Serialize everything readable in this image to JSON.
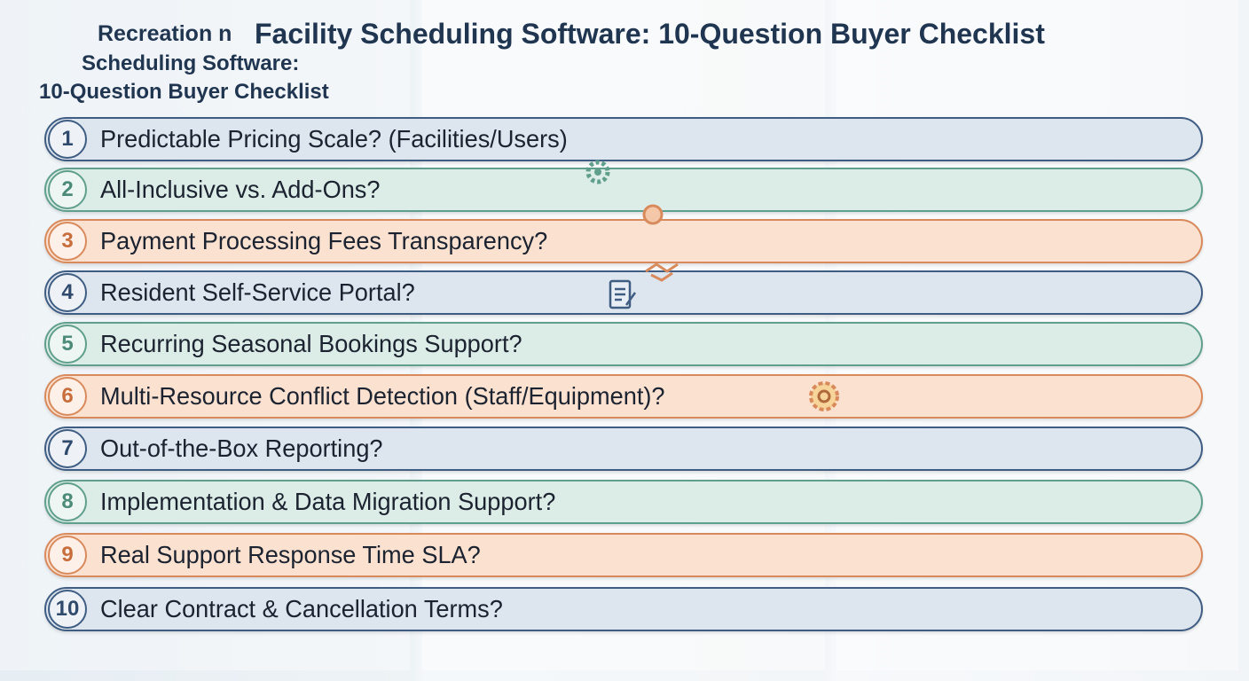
{
  "header": {
    "prefix": "Recreation n",
    "title": "Facility Scheduling Software: 10-Question Buyer Checklist",
    "subtitle_line1": "Scheduling Software:",
    "subtitle_line2": "10-Question Buyer Checklist"
  },
  "items": [
    {
      "number": 1,
      "text": "Predictable Pricing Scale? (Facilities/Users)"
    },
    {
      "number": 2,
      "text": "All-Inclusive vs. Add-Ons?"
    },
    {
      "number": 3,
      "text": "Payment Processing Fees Transparency?"
    },
    {
      "number": 4,
      "text": "Resident Self-Service Portal?"
    },
    {
      "number": 5,
      "text": "Recurring Seasonal Bookings Support?"
    },
    {
      "number": 6,
      "text": "Multi-Resource Conflict Detection (Staff/Equipment)?"
    },
    {
      "number": 7,
      "text": "Out-of-the-Box Reporting?"
    },
    {
      "number": 8,
      "text": "Implementation & Data Migration Support?"
    },
    {
      "number": 9,
      "text": "Real Support Response Time SLA?"
    },
    {
      "number": 10,
      "text": "Clear Contract & Cancellation Terms?"
    }
  ]
}
